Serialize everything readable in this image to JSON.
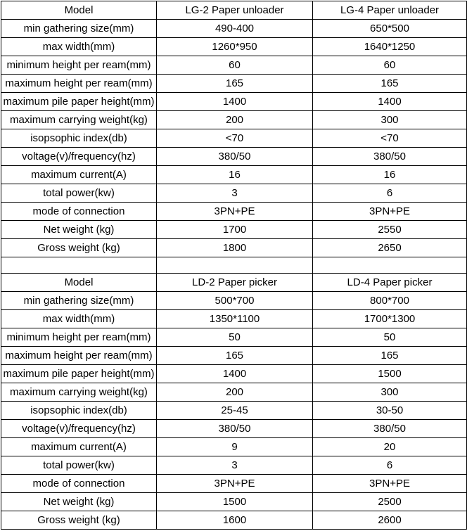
{
  "theme": {
    "background_color": "#ffffff",
    "border_color": "#000000",
    "text_color": "#000000"
  },
  "tables": [
    {
      "name": "paper-unloader-specs",
      "header": [
        "Model",
        "LG-2 Paper unloader",
        "LG-4 Paper unloader"
      ],
      "rows": [
        [
          "min gathering size(mm)",
          "490-400",
          "650*500"
        ],
        [
          "max width(mm)",
          "1260*950",
          "1640*1250"
        ],
        [
          "minimum height per ream(mm)",
          "60",
          "60"
        ],
        [
          "maximum height per ream(mm)",
          "165",
          "165"
        ],
        [
          "maximum pile paper height(mm)",
          "1400",
          "1400"
        ],
        [
          "maximum carrying weight(kg)",
          "200",
          "300"
        ],
        [
          "isopsophic index(db)",
          "<70",
          "<70"
        ],
        [
          "voltage(v)/frequency(hz)",
          "380/50",
          "380/50"
        ],
        [
          "maximum current(A)",
          "16",
          "16"
        ],
        [
          "total power(kw)",
          "3",
          "6"
        ],
        [
          "mode of connection",
          "3PN+PE",
          "3PN+PE"
        ],
        [
          "Net weight (kg)",
          "1700",
          "2550"
        ],
        [
          "Gross weight (kg)",
          "1800",
          "2650"
        ]
      ]
    },
    {
      "name": "paper-picker-specs",
      "header": [
        "Model",
        "LD-2 Paper picker",
        "LD-4 Paper picker"
      ],
      "rows": [
        [
          "min gathering size(mm)",
          "500*700",
          "800*700"
        ],
        [
          "max width(mm)",
          "1350*1100",
          "1700*1300"
        ],
        [
          "minimum height per ream(mm)",
          "50",
          "50"
        ],
        [
          "maximum height per ream(mm)",
          "165",
          "165"
        ],
        [
          "maximum pile paper height(mm)",
          "1400",
          "1500"
        ],
        [
          "maximum carrying weight(kg)",
          "200",
          "300"
        ],
        [
          "isopsophic index(db)",
          "25-45",
          "30-50"
        ],
        [
          "voltage(v)/frequency(hz)",
          "380/50",
          "380/50"
        ],
        [
          "maximum current(A)",
          "9",
          "20"
        ],
        [
          "total power(kw)",
          "3",
          "6"
        ],
        [
          "mode of connection",
          "3PN+PE",
          "3PN+PE"
        ],
        [
          "Net weight (kg)",
          "1500",
          "2500"
        ],
        [
          "Gross weight (kg)",
          "1600",
          "2600"
        ]
      ]
    }
  ]
}
